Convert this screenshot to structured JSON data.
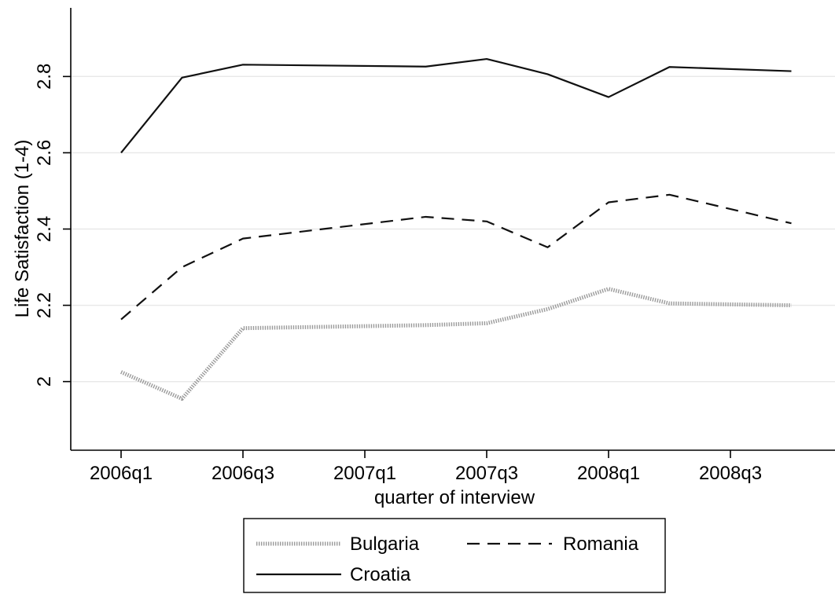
{
  "chart_data": {
    "type": "line",
    "ylabel": "Life Satisfaction (1-4)",
    "xlabel": "quarter of interview",
    "x": [
      "2006q1",
      "2006q2",
      "2006q3",
      "2006q4",
      "2007q1",
      "2007q2",
      "2007q3",
      "2007q4",
      "2008q1",
      "2008q2",
      "2008q3",
      "2008q4"
    ],
    "x_ticks": [
      "2006q1",
      "2006q3",
      "2007q1",
      "2007q3",
      "2008q1",
      "2008q3"
    ],
    "y_ticks": [
      2,
      2.2,
      2.4,
      2.6,
      2.8
    ],
    "y_tick_labels": [
      "2",
      "2.2",
      "2.4",
      "2.6",
      "2.8"
    ],
    "ylim": [
      1.82,
      2.98
    ],
    "grid": true,
    "legend_position": "bottom",
    "series": [
      {
        "name": "Bulgaria",
        "style": "dotted-gray",
        "points": [
          {
            "x": "2006q1",
            "y": 2.025
          },
          {
            "x": "2006q2",
            "y": 1.955
          },
          {
            "x": "2006q3",
            "y": 2.14
          },
          {
            "x": "2007q2",
            "y": 2.148
          },
          {
            "x": "2007q3",
            "y": 2.153
          },
          {
            "x": "2007q4",
            "y": 2.19
          },
          {
            "x": "2008q1",
            "y": 2.243
          },
          {
            "x": "2008q2",
            "y": 2.205
          },
          {
            "x": "2008q4",
            "y": 2.2
          }
        ]
      },
      {
        "name": "Romania",
        "style": "dashed",
        "points": [
          {
            "x": "2006q1",
            "y": 2.163
          },
          {
            "x": "2006q2",
            "y": 2.3
          },
          {
            "x": "2006q3",
            "y": 2.375
          },
          {
            "x": "2007q2",
            "y": 2.432
          },
          {
            "x": "2007q3",
            "y": 2.42
          },
          {
            "x": "2007q4",
            "y": 2.352
          },
          {
            "x": "2008q1",
            "y": 2.47
          },
          {
            "x": "2008q2",
            "y": 2.49
          },
          {
            "x": "2008q4",
            "y": 2.415
          }
        ]
      },
      {
        "name": "Croatia",
        "style": "solid",
        "points": [
          {
            "x": "2006q1",
            "y": 2.6
          },
          {
            "x": "2006q2",
            "y": 2.797
          },
          {
            "x": "2006q3",
            "y": 2.831
          },
          {
            "x": "2007q2",
            "y": 2.826
          },
          {
            "x": "2007q3",
            "y": 2.846
          },
          {
            "x": "2007q4",
            "y": 2.806
          },
          {
            "x": "2008q1",
            "y": 2.746
          },
          {
            "x": "2008q2",
            "y": 2.825
          },
          {
            "x": "2008q4",
            "y": 2.814
          }
        ]
      }
    ],
    "legend": [
      "Bulgaria",
      "Romania",
      "Croatia"
    ]
  }
}
